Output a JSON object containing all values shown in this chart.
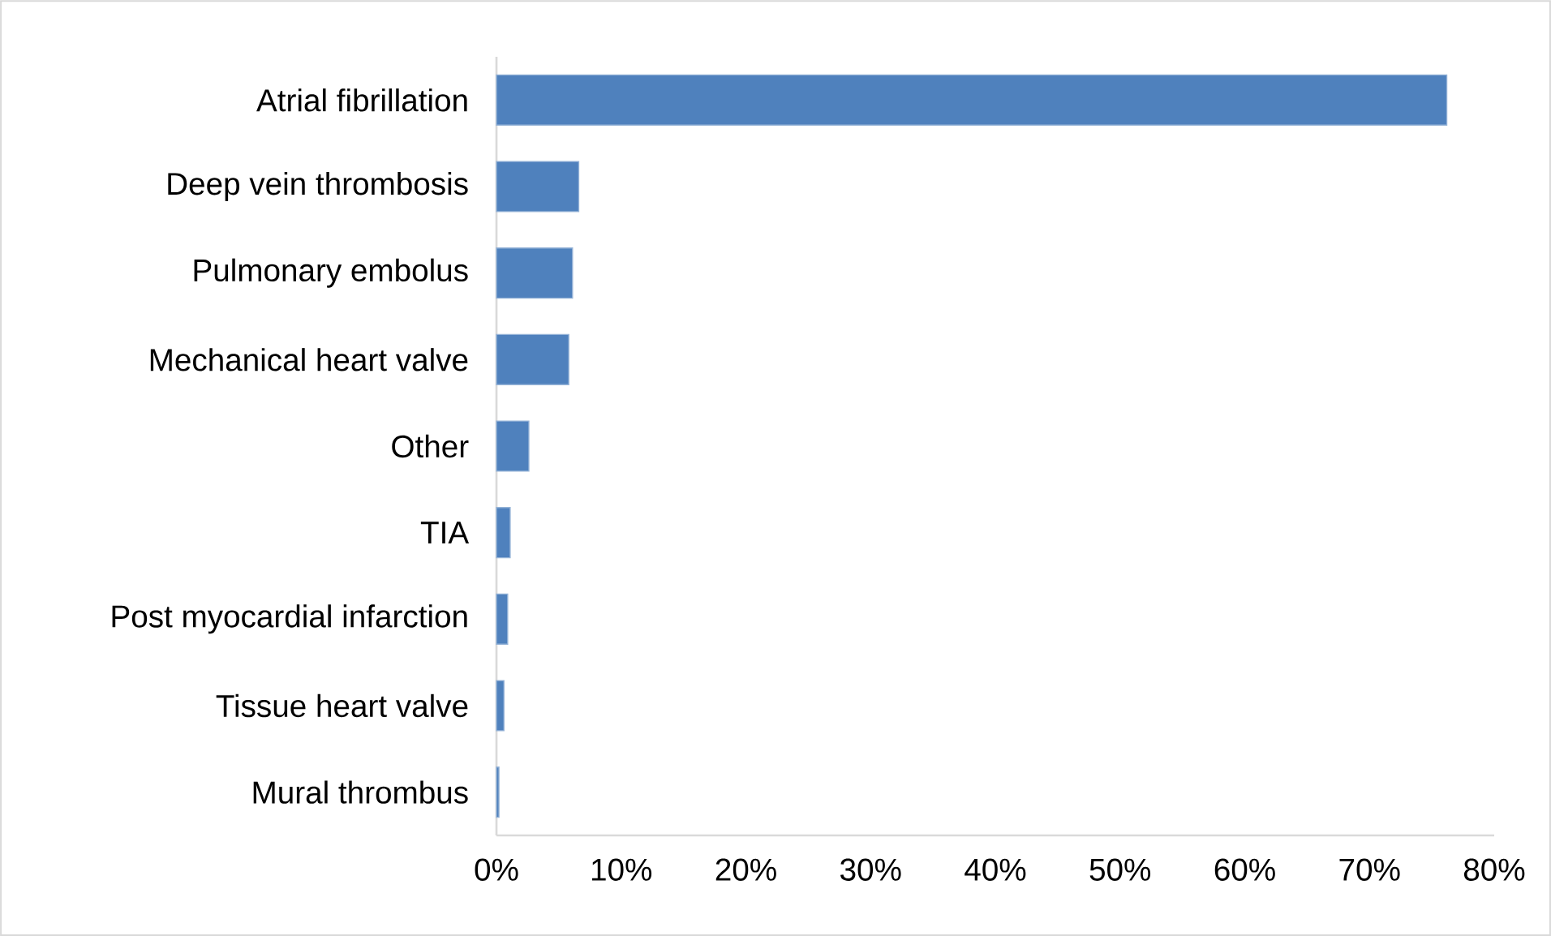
{
  "chart_data": {
    "type": "bar",
    "orientation": "horizontal",
    "categories": [
      "Atrial fibrillation",
      "Deep vein thrombosis",
      "Pulmonary embolus",
      "Mechanical heart valve",
      "Other",
      "TIA",
      "Post myocardial infarction",
      "Tissue heart valve",
      "Mural thrombus"
    ],
    "values": [
      76.2,
      6.6,
      6.1,
      5.8,
      2.6,
      1.1,
      0.9,
      0.6,
      0.2
    ],
    "color": "#4f81bd",
    "xlim": [
      0,
      80
    ],
    "xticks": [
      {
        "value": 0,
        "label": "0%"
      },
      {
        "value": 10,
        "label": "10%"
      },
      {
        "value": 20,
        "label": "20%"
      },
      {
        "value": 30,
        "label": "30%"
      },
      {
        "value": 40,
        "label": "40%"
      },
      {
        "value": 50,
        "label": "50%"
      },
      {
        "value": 60,
        "label": "60%"
      },
      {
        "value": 70,
        "label": "70%"
      },
      {
        "value": 80,
        "label": "80%"
      }
    ],
    "line_style": "solid"
  }
}
